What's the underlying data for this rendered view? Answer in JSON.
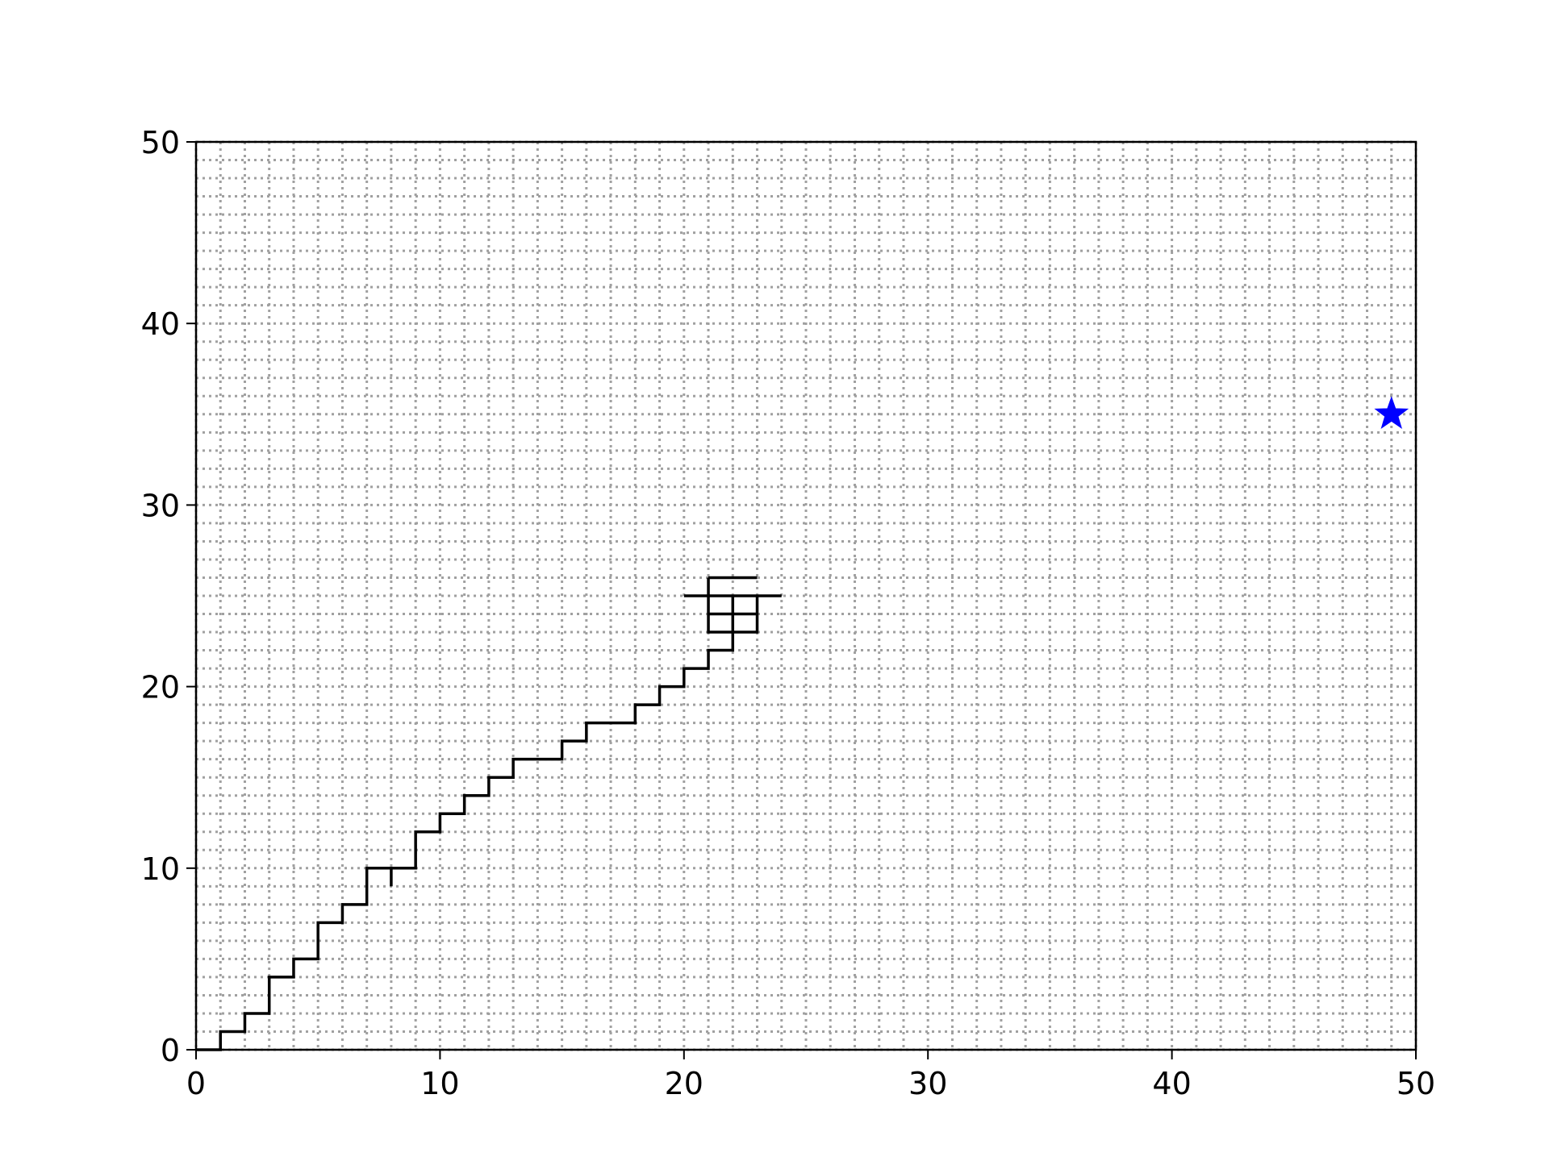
{
  "chart_data": {
    "type": "line",
    "title": "",
    "xlabel": "",
    "ylabel": "",
    "xlim": [
      0,
      50
    ],
    "ylim": [
      0,
      50
    ],
    "xticks": [
      0,
      10,
      20,
      30,
      40,
      50
    ],
    "yticks": [
      0,
      10,
      20,
      30,
      40,
      50
    ],
    "tick_labels": {
      "x": [
        "0",
        "10",
        "20",
        "30",
        "40",
        "50"
      ],
      "y": [
        "0",
        "10",
        "20",
        "30",
        "40",
        "50"
      ]
    },
    "grid": {
      "on": true,
      "style": "dotted",
      "spacing": 1,
      "color": "#a0a0a0"
    },
    "path": {
      "name": "",
      "color": "#000000",
      "segments": [
        [
          [
            0,
            0
          ],
          [
            1,
            0
          ],
          [
            1,
            1
          ],
          [
            2,
            1
          ],
          [
            2,
            2
          ],
          [
            3,
            2
          ],
          [
            3,
            4
          ],
          [
            4,
            4
          ],
          [
            4,
            5
          ],
          [
            5,
            5
          ],
          [
            5,
            7
          ],
          [
            6,
            7
          ],
          [
            6,
            8
          ],
          [
            7,
            8
          ],
          [
            7,
            10
          ],
          [
            9,
            10
          ],
          [
            9,
            12
          ],
          [
            10,
            12
          ],
          [
            10,
            13
          ],
          [
            11,
            13
          ],
          [
            11,
            14
          ],
          [
            12,
            14
          ],
          [
            12,
            15
          ],
          [
            13,
            15
          ],
          [
            13,
            16
          ],
          [
            15,
            16
          ],
          [
            15,
            17
          ],
          [
            16,
            17
          ],
          [
            16,
            18
          ],
          [
            18,
            18
          ],
          [
            18,
            19
          ],
          [
            19,
            19
          ],
          [
            19,
            20
          ],
          [
            20,
            20
          ],
          [
            20,
            21
          ],
          [
            21,
            21
          ],
          [
            21,
            22
          ],
          [
            22,
            22
          ],
          [
            22,
            25
          ]
        ],
        [
          [
            8,
            10
          ],
          [
            8,
            9
          ]
        ],
        [
          [
            21,
            26
          ],
          [
            23,
            26
          ]
        ],
        [
          [
            21,
            26
          ],
          [
            21,
            23
          ],
          [
            23,
            23
          ],
          [
            23,
            25
          ]
        ],
        [
          [
            21,
            24
          ],
          [
            23,
            24
          ]
        ],
        [
          [
            20,
            25
          ],
          [
            24,
            25
          ]
        ]
      ]
    },
    "goal": {
      "marker": "star",
      "x": 49,
      "y": 35,
      "color": "#0000ff"
    }
  }
}
